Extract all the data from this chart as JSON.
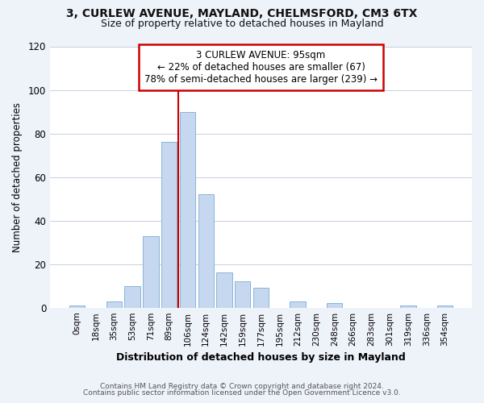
{
  "title_line1": "3, CURLEW AVENUE, MAYLAND, CHELMSFORD, CM3 6TX",
  "title_line2": "Size of property relative to detached houses in Mayland",
  "xlabel": "Distribution of detached houses by size in Mayland",
  "ylabel": "Number of detached properties",
  "bar_labels": [
    "0sqm",
    "18sqm",
    "35sqm",
    "53sqm",
    "71sqm",
    "89sqm",
    "106sqm",
    "124sqm",
    "142sqm",
    "159sqm",
    "177sqm",
    "195sqm",
    "212sqm",
    "230sqm",
    "248sqm",
    "266sqm",
    "283sqm",
    "301sqm",
    "319sqm",
    "336sqm",
    "354sqm"
  ],
  "bar_values": [
    1,
    0,
    3,
    10,
    33,
    76,
    90,
    52,
    16,
    12,
    9,
    0,
    3,
    0,
    2,
    0,
    0,
    0,
    1,
    0,
    1
  ],
  "bar_color": "#c5d8f0",
  "bar_edge_color": "#8ab4d8",
  "vline_x": 5.5,
  "vline_color": "#cc0000",
  "annotation_title": "3 CURLEW AVENUE: 95sqm",
  "annotation_line1": "← 22% of detached houses are smaller (67)",
  "annotation_line2": "78% of semi-detached houses are larger (239) →",
  "annotation_box_color": "#ffffff",
  "annotation_box_edge_color": "#cc0000",
  "ylim": [
    0,
    120
  ],
  "yticks": [
    0,
    20,
    40,
    60,
    80,
    100,
    120
  ],
  "footnote1": "Contains HM Land Registry data © Crown copyright and database right 2024.",
  "footnote2": "Contains public sector information licensed under the Open Government Licence v3.0.",
  "background_color": "#eef2f9",
  "plot_background_color": "#ffffff"
}
